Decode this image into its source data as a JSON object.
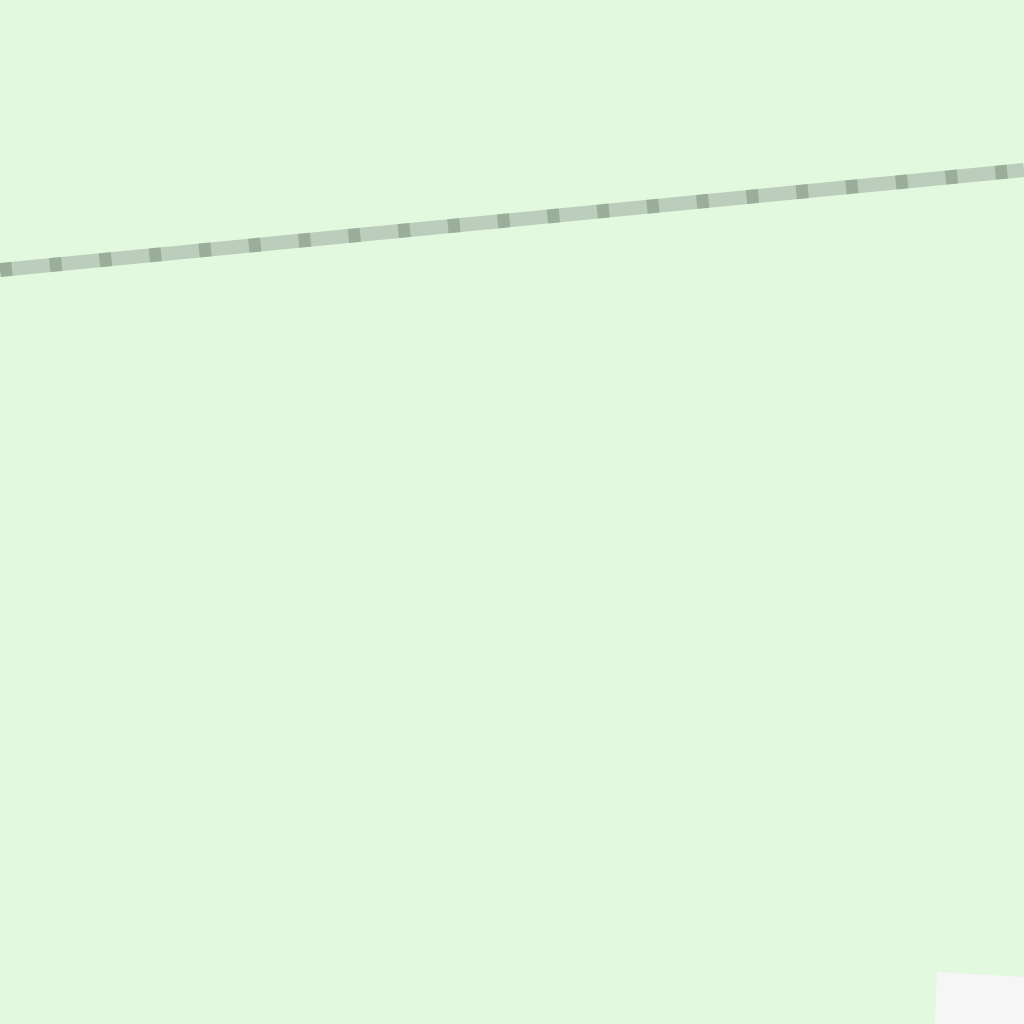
{
  "map": {
    "colors": {
      "park": "#e2f9e0",
      "rail_bed": "#bdcdbb",
      "rail_ties": "#9bae99",
      "built_area": "#f6f6f6"
    },
    "features": [
      {
        "kind": "park-area"
      },
      {
        "kind": "railway"
      },
      {
        "kind": "built-area"
      }
    ]
  }
}
